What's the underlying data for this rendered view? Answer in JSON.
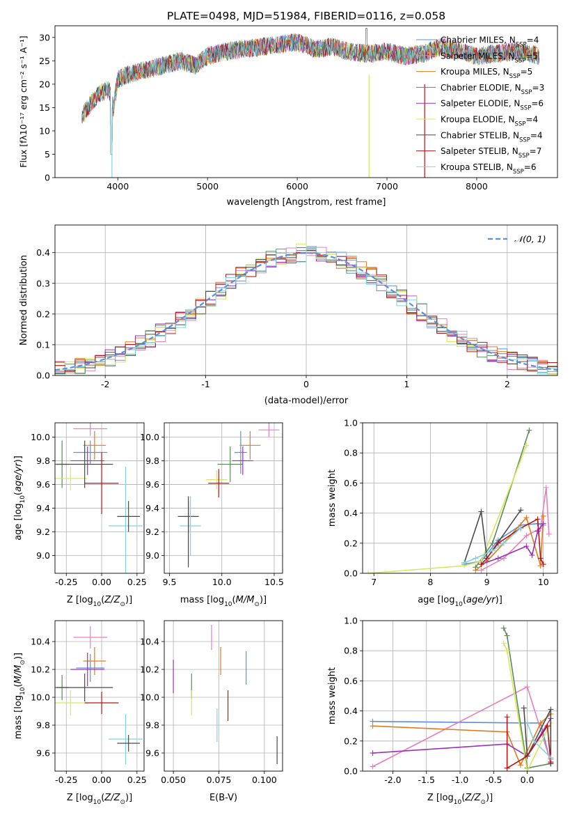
{
  "title": "PLATE=0498, MJD=51984, FIBERID=0116, z=0.058",
  "colors": [
    "#5b8fd9",
    "#e67fbd",
    "#e07a1f",
    "#5a8a5a",
    "#9b30b7",
    "#d6e85a",
    "#4a4a4a",
    "#b81414",
    "#80d4e0"
  ],
  "legend": [
    {
      "pre": "Chabrier MILES, N",
      "sub": "SSP",
      "post": "=4"
    },
    {
      "pre": "Salpeter MILES, N",
      "sub": "SSP",
      "post": "=5"
    },
    {
      "pre": "Kroupa MILES, N",
      "sub": "SSP",
      "post": "=5"
    },
    {
      "pre": "Chabrier ELODIE, N",
      "sub": "SSP",
      "post": "=3"
    },
    {
      "pre": "Salpeter ELODIE, N",
      "sub": "SSP",
      "post": "=6"
    },
    {
      "pre": "Kroupa ELODIE, N",
      "sub": "SSP",
      "post": "=4"
    },
    {
      "pre": "Chabrier STELIB, N",
      "sub": "SSP",
      "post": "=4"
    },
    {
      "pre": "Salpeter STELIB, N",
      "sub": "SSP",
      "post": "=7"
    },
    {
      "pre": "Kroupa STELIB, N",
      "sub": "SSP",
      "post": "=6"
    }
  ],
  "chart_data": [
    {
      "type": "line",
      "id": "spectrum",
      "xlabel": "wavelength [Angstrom, rest frame]",
      "ylabel": "Flux [fλ10⁻¹⁷ erg cm⁻² s⁻¹ A⁻¹]",
      "xlim": [
        3300,
        8900
      ],
      "ylim": [
        0,
        32.5
      ],
      "xticks": [
        4000,
        5000,
        6000,
        7000,
        8000
      ],
      "yticks": [
        0,
        5,
        10,
        15,
        20,
        25,
        30
      ],
      "envelope": [
        [
          3600,
          13
        ],
        [
          3700,
          16
        ],
        [
          3800,
          18
        ],
        [
          3900,
          19
        ],
        [
          3950,
          15
        ],
        [
          4000,
          21
        ],
        [
          4100,
          22
        ],
        [
          4300,
          23
        ],
        [
          4500,
          24
        ],
        [
          4700,
          25
        ],
        [
          4860,
          24
        ],
        [
          5000,
          26
        ],
        [
          5200,
          27
        ],
        [
          5400,
          27.5
        ],
        [
          5600,
          28
        ],
        [
          5800,
          28.5
        ],
        [
          6000,
          29
        ],
        [
          6200,
          27.5
        ],
        [
          6400,
          28
        ],
        [
          6563,
          27
        ],
        [
          6800,
          26.5
        ],
        [
          7000,
          27
        ],
        [
          7200,
          26
        ],
        [
          7400,
          26.5
        ],
        [
          7600,
          28
        ],
        [
          7800,
          27
        ],
        [
          8000,
          26
        ],
        [
          8200,
          26.5
        ],
        [
          8400,
          27
        ],
        [
          8600,
          26.5
        ],
        [
          8700,
          26
        ]
      ]
    },
    {
      "type": "step",
      "id": "residuals",
      "xlabel": "(data-model)/error",
      "ylabel": "Normed distribution",
      "legend": "𝒩(0, 1)",
      "xlim": [
        -2.5,
        2.5
      ],
      "ylim": [
        0,
        0.49
      ],
      "xticks": [
        -2,
        -1,
        0,
        1,
        2
      ],
      "yticks": [
        0.0,
        0.1,
        0.2,
        0.3,
        0.4
      ],
      "bin_width": 0.1
    },
    {
      "type": "scatter",
      "id": "age-vs-z",
      "xlabel": "Z [log10(Z/Z⊙)]",
      "ylabel": "age  [log10(age/yr)]",
      "xlim": [
        -0.33,
        0.3
      ],
      "ylim": [
        8.85,
        10.12
      ],
      "xticks": [
        -0.25,
        0.0,
        0.25
      ],
      "yticks": [
        9.0,
        9.2,
        9.4,
        9.6,
        9.8,
        10.0
      ],
      "points": [
        {
          "x": -0.08,
          "y": 9.87,
          "xerr": 0.12,
          "yerr": 0.1
        },
        {
          "x": -0.08,
          "y": 10.07,
          "xerr": 0.12,
          "yerr": 0.06
        },
        {
          "x": -0.05,
          "y": 9.93,
          "xerr": 0.08,
          "yerr": 0.12
        },
        {
          "x": -0.28,
          "y": 9.77,
          "xerr": 0.05,
          "yerr": 0.2
        },
        {
          "x": -0.1,
          "y": 9.8,
          "xerr": 0.12,
          "yerr": 0.12
        },
        {
          "x": -0.22,
          "y": 9.65,
          "xerr": 0.12,
          "yerr": 0.1
        },
        {
          "x": -0.12,
          "y": 9.77,
          "xerr": 0.2,
          "yerr": 0.2
        },
        {
          "x": 0.0,
          "y": 9.61,
          "xerr": 0.12,
          "yerr": 0.26
        },
        {
          "x": 0.17,
          "y": 9.25,
          "xerr": 0.12,
          "yerr": 0.5
        }
      ],
      "extra": [
        {
          "x": 0.19,
          "y": 9.33,
          "xerr": 0.08,
          "yerr": 0.13,
          "series": 6
        }
      ]
    },
    {
      "type": "scatter",
      "id": "age-vs-mass",
      "xlabel": "mass [log10(M/M⊙)]",
      "ylabel": "",
      "xlim": [
        9.45,
        10.58
      ],
      "ylim": [
        8.85,
        10.12
      ],
      "xticks": [
        9.5,
        10.0,
        10.5
      ],
      "yticks": [
        9.0,
        9.2,
        9.4,
        9.6,
        9.8,
        10.0
      ],
      "points": [
        {
          "x": 10.18,
          "y": 9.87,
          "xerr": 0.06,
          "yerr": 0.18
        },
        {
          "x": 10.45,
          "y": 10.06,
          "xerr": 0.1,
          "yerr": 0.06
        },
        {
          "x": 10.27,
          "y": 9.93,
          "xerr": 0.1,
          "yerr": 0.12
        },
        {
          "x": 10.08,
          "y": 9.77,
          "xerr": 0.12,
          "yerr": 0.15
        },
        {
          "x": 10.2,
          "y": 9.8,
          "xerr": 0.1,
          "yerr": 0.12
        },
        {
          "x": 9.95,
          "y": 9.64,
          "xerr": 0.1,
          "yerr": 0.08
        },
        {
          "x": 9.68,
          "y": 9.33,
          "xerr": 0.1,
          "yerr": 0.13
        },
        {
          "x": 9.97,
          "y": 9.61,
          "xerr": 0.1,
          "yerr": 0.12
        },
        {
          "x": 9.7,
          "y": 9.25,
          "xerr": 0.1,
          "yerr": 0.25
        }
      ],
      "extra": [
        {
          "x": 9.68,
          "y": 9.2,
          "xerr": 0.0,
          "yerr": 0.3,
          "series": 6
        }
      ]
    },
    {
      "type": "line",
      "id": "massweight-vs-age",
      "xlabel": "age  [log10(age/yr)]",
      "ylabel": "mass weight",
      "xlim": [
        6.8,
        10.25
      ],
      "ylim": [
        0,
        1.0
      ],
      "xticks": [
        7,
        8,
        9,
        10
      ],
      "yticks": [
        0.0,
        0.2,
        0.4,
        0.6,
        0.8,
        1.0
      ],
      "series": [
        {
          "x": [
            8.6,
            8.9,
            9.2,
            9.6,
            9.9,
            10.0
          ],
          "y": [
            0.06,
            0.08,
            0.22,
            0.32,
            0.33,
            0.32
          ]
        },
        {
          "x": [
            8.9,
            9.3,
            9.7,
            9.95,
            10.05,
            10.1
          ],
          "y": [
            0.02,
            0.1,
            0.25,
            0.3,
            0.57,
            0.26
          ]
        },
        {
          "x": [
            8.8,
            9.0,
            9.3,
            9.7,
            9.95,
            10.0
          ],
          "y": [
            0.02,
            0.08,
            0.2,
            0.37,
            0.05,
            0.38
          ]
        },
        {
          "x": [
            8.8,
            9.1,
            9.75
          ],
          "y": [
            0.04,
            0.2,
            0.95
          ]
        },
        {
          "x": [
            8.9,
            9.2,
            9.7,
            9.8,
            9.9,
            10.0
          ],
          "y": [
            0.06,
            0.1,
            0.18,
            0.12,
            0.28,
            0.33
          ]
        },
        {
          "x": [
            6.9,
            8.6,
            8.9,
            9.7
          ],
          "y": [
            0.0,
            0.05,
            0.08,
            0.85
          ]
        },
        {
          "x": [
            8.6,
            8.9,
            9.0,
            9.6
          ],
          "y": [
            0.07,
            0.41,
            0.1,
            0.42
          ]
        },
        {
          "x": [
            8.9,
            9.0,
            9.2,
            9.6,
            9.9,
            9.95,
            10.0
          ],
          "y": [
            0.06,
            0.1,
            0.2,
            0.3,
            0.36,
            0.1,
            0.06
          ]
        },
        {
          "x": [
            8.6,
            8.8,
            9.1,
            9.3,
            9.6
          ],
          "y": [
            0.07,
            0.1,
            0.15,
            0.2,
            0.3
          ]
        }
      ]
    },
    {
      "type": "scatter",
      "id": "mass-vs-z",
      "xlabel": "Z [log10(Z/Z⊙)]",
      "ylabel": "mass [log10(M/M⊙)]",
      "xlim": [
        -0.33,
        0.3
      ],
      "ylim": [
        9.47,
        10.55
      ],
      "xticks": [
        -0.25,
        0.0,
        0.25
      ],
      "yticks": [
        9.6,
        9.8,
        10.0,
        10.2,
        10.4
      ],
      "points": [
        {
          "x": -0.08,
          "y": 10.21,
          "xerr": 0.1,
          "yerr": 0.1
        },
        {
          "x": -0.08,
          "y": 10.43,
          "xerr": 0.12,
          "yerr": 0.08
        },
        {
          "x": -0.05,
          "y": 10.26,
          "xerr": 0.08,
          "yerr": 0.1
        },
        {
          "x": -0.28,
          "y": 10.07,
          "xerr": 0.05,
          "yerr": 0.09
        },
        {
          "x": -0.1,
          "y": 10.2,
          "xerr": 0.12,
          "yerr": 0.12
        },
        {
          "x": -0.22,
          "y": 9.96,
          "xerr": 0.12,
          "yerr": 0.09
        },
        {
          "x": -0.12,
          "y": 10.07,
          "xerr": 0.2,
          "yerr": 0.1
        },
        {
          "x": 0.0,
          "y": 9.96,
          "xerr": 0.12,
          "yerr": 0.08
        },
        {
          "x": 0.17,
          "y": 9.7,
          "xerr": 0.12,
          "yerr": 0.18
        }
      ],
      "extra": [
        {
          "x": 0.19,
          "y": 9.67,
          "xerr": 0.08,
          "yerr": 0.06,
          "series": 6
        }
      ]
    },
    {
      "type": "scatter",
      "id": "mass-vs-ebv",
      "xlabel": "E(B-V)",
      "ylabel": "",
      "xlim": [
        0.045,
        0.11
      ],
      "ylim": [
        9.47,
        10.55
      ],
      "xticks": [
        0.05,
        0.075,
        0.1
      ],
      "yticks": [
        9.6,
        9.8,
        10.0,
        10.2,
        10.4
      ],
      "points": [
        {
          "x": 0.09,
          "y": 10.21,
          "xerr": 0.0,
          "yerr": 0.12
        },
        {
          "x": 0.071,
          "y": 10.43,
          "xerr": 0.0,
          "yerr": 0.09
        },
        {
          "x": 0.076,
          "y": 10.26,
          "xerr": 0.0,
          "yerr": 0.1
        },
        {
          "x": 0.06,
          "y": 10.08,
          "xerr": 0.0,
          "yerr": 0.09
        },
        {
          "x": 0.05,
          "y": 10.15,
          "xerr": 0.0,
          "yerr": 0.12
        },
        {
          "x": 0.06,
          "y": 9.96,
          "xerr": 0.0,
          "yerr": 0.09
        },
        {
          "x": 0.107,
          "y": 9.62,
          "xerr": 0.0,
          "yerr": 0.1
        },
        {
          "x": 0.08,
          "y": 9.94,
          "xerr": 0.0,
          "yerr": 0.11
        },
        {
          "x": 0.074,
          "y": 9.8,
          "xerr": 0.0,
          "yerr": 0.12
        }
      ]
    },
    {
      "type": "line",
      "id": "massweight-vs-z",
      "xlabel": "Z [log10(Z/Z⊙)]",
      "ylabel": "mass weight",
      "xlim": [
        -2.45,
        0.45
      ],
      "ylim": [
        0,
        1.0
      ],
      "xticks": [
        -2.0,
        -1.5,
        -1.0,
        -0.5,
        0.0
      ],
      "yticks": [
        0.0,
        0.2,
        0.4,
        0.6,
        0.8,
        1.0
      ],
      "series": [
        {
          "x": [
            -2.3,
            0.0,
            0.2,
            0.35,
            0.35
          ],
          "y": [
            0.33,
            0.32,
            0.32,
            0.05,
            0.08
          ]
        },
        {
          "x": [
            -2.3,
            0.0,
            0.35
          ],
          "y": [
            0.03,
            0.56,
            0.06
          ]
        },
        {
          "x": [
            -2.3,
            -0.3,
            -0.1,
            0.2,
            0.35
          ],
          "y": [
            0.3,
            0.26,
            0.04,
            0.32,
            0.38
          ]
        },
        {
          "x": [
            -0.35,
            -0.3,
            0.0,
            0.35
          ],
          "y": [
            0.95,
            0.9,
            0.02,
            0.05
          ]
        },
        {
          "x": [
            -2.3,
            -0.3,
            0.0,
            0.35
          ],
          "y": [
            0.12,
            0.18,
            0.1,
            0.35
          ]
        },
        {
          "x": [
            -0.35,
            -0.3,
            0.0,
            0.35
          ],
          "y": [
            0.85,
            0.8,
            0.0,
            0.32
          ]
        },
        {
          "x": [
            -0.05,
            0.0,
            0.35,
            0.35
          ],
          "y": [
            0.42,
            0.1,
            0.41,
            0.05
          ]
        },
        {
          "x": [
            -0.3,
            -0.3,
            0.0,
            0.3,
            0.35
          ],
          "y": [
            0.36,
            0.02,
            0.1,
            0.3,
            0.06
          ]
        },
        {
          "x": [
            0.0,
            0.1,
            0.35
          ],
          "y": [
            0.32,
            0.2,
            0.09
          ]
        }
      ]
    }
  ]
}
